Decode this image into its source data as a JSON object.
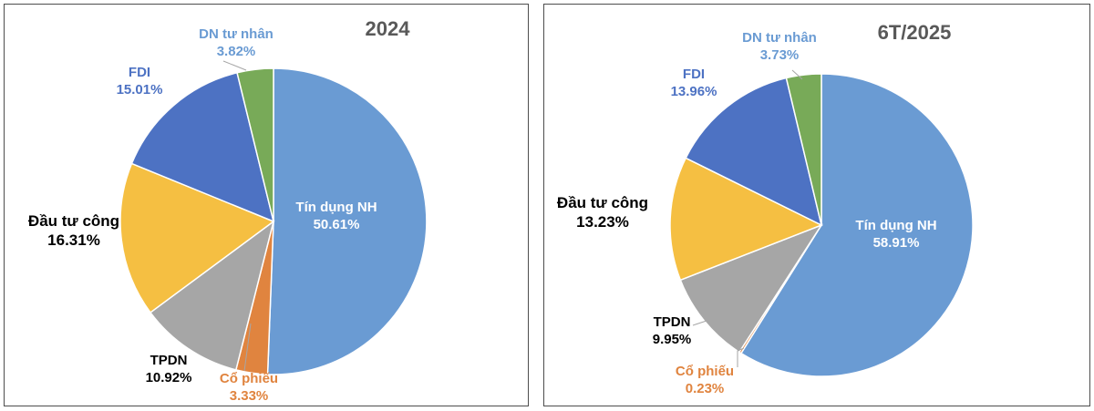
{
  "colors": {
    "tin_dung": "#6a9bd3",
    "co_phieu": "#e0843f",
    "tpdn": "#a6a6a6",
    "dau_tu_cong": "#f5bf42",
    "fdi": "#4d72c3",
    "dn_tu_nhan": "#78aa58",
    "label_dark": "#000000",
    "label_white": "#ffffff",
    "title": "#595959"
  },
  "chart_data": [
    {
      "type": "pie",
      "title": "2024",
      "slices": [
        {
          "label": "Tín dụng NH",
          "value": 50.61,
          "value_label": "50.61%",
          "color": "#6a9bd3"
        },
        {
          "label": "Cổ phiếu",
          "value": 3.33,
          "value_label": "3.33%",
          "color": "#e0843f"
        },
        {
          "label": "TPDN",
          "value": 10.92,
          "value_label": "10.92%",
          "color": "#a6a6a6"
        },
        {
          "label": "Đầu tư công",
          "value": 16.31,
          "value_label": "16.31%",
          "color": "#f5bf42"
        },
        {
          "label": "FDI",
          "value": 15.01,
          "value_label": "15.01%",
          "color": "#4d72c3"
        },
        {
          "label": "DN tư nhân",
          "value": 3.82,
          "value_label": "3.82%",
          "color": "#78aa58"
        }
      ]
    },
    {
      "type": "pie",
      "title": "6T/2025",
      "slices": [
        {
          "label": "Tín dụng NH",
          "value": 58.91,
          "value_label": "58.91%",
          "color": "#6a9bd3"
        },
        {
          "label": "Cổ phiếu",
          "value": 0.23,
          "value_label": "0.23%",
          "color": "#e0843f"
        },
        {
          "label": "TPDN",
          "value": 9.95,
          "value_label": "9.95%",
          "color": "#a6a6a6"
        },
        {
          "label": "Đầu tư công",
          "value": 13.23,
          "value_label": "13.23%",
          "color": "#f5bf42"
        },
        {
          "label": "FDI",
          "value": 13.96,
          "value_label": "13.96%",
          "color": "#4d72c3"
        },
        {
          "label": "DN tư nhân",
          "value": 3.73,
          "value_label": "3.73%",
          "color": "#78aa58"
        }
      ]
    }
  ]
}
